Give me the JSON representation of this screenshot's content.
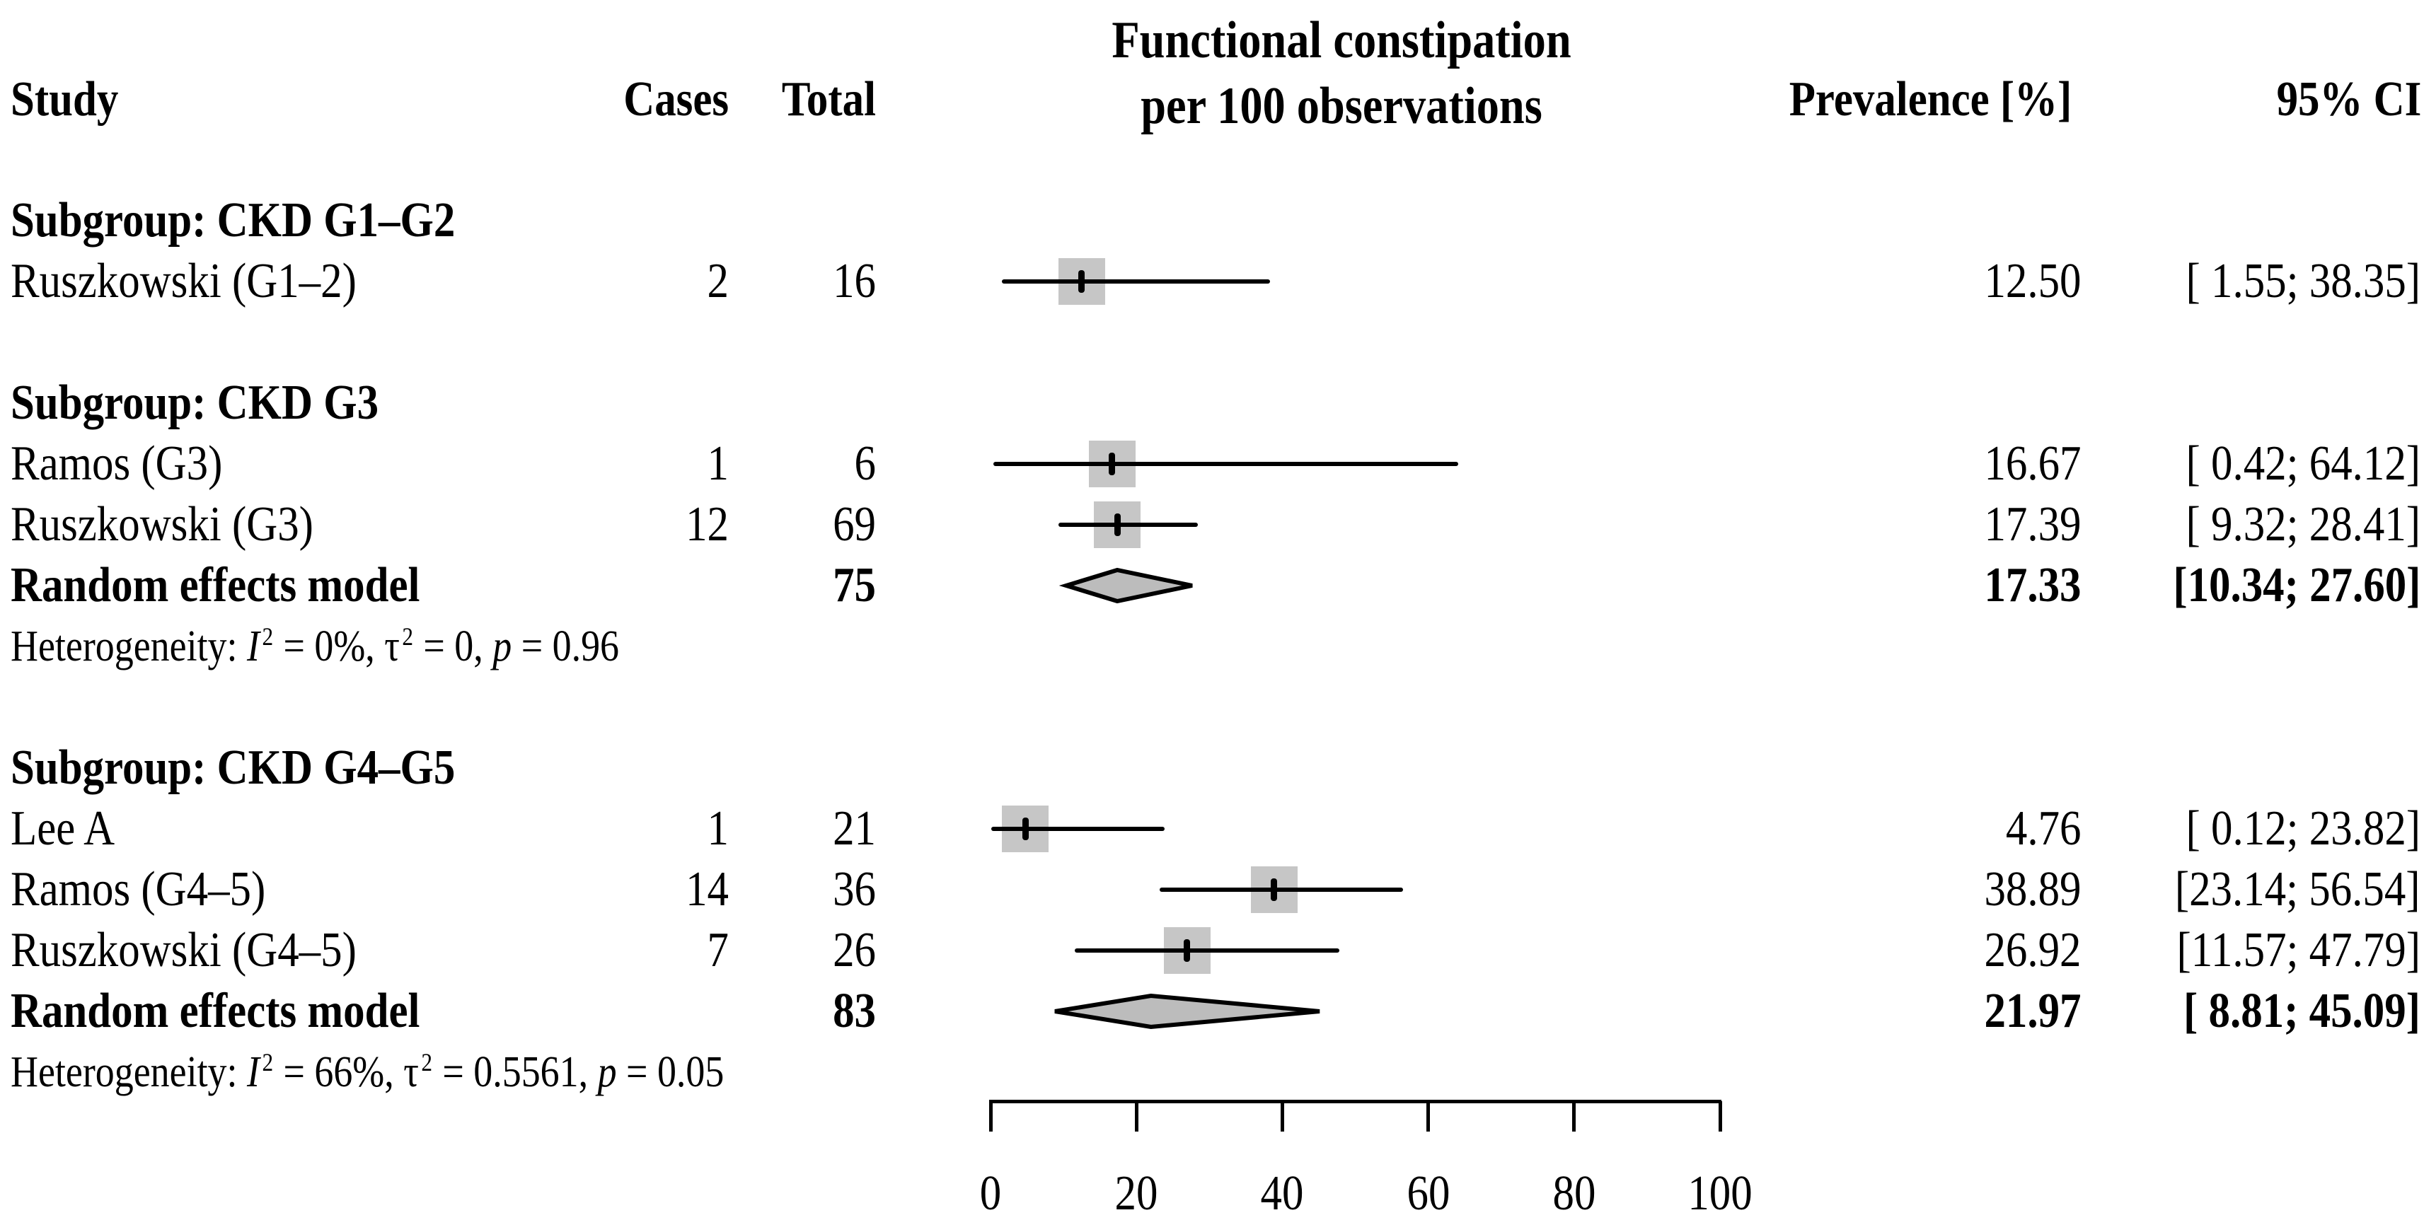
{
  "figure": {
    "background": "#ffffff",
    "text_color": "#000000"
  },
  "header": {
    "study": "Study",
    "cases": "Cases",
    "total": "Total",
    "plot_title_line1": "Functional constipation",
    "plot_title_line2": "per 100 observations",
    "prevalence": "Prevalence [%]",
    "ci": "95% CI"
  },
  "chart_data": {
    "type": "forest",
    "x_axis": {
      "range": [
        0,
        100
      ],
      "ticks": [
        0,
        20,
        40,
        60,
        80,
        100
      ]
    },
    "colors": {
      "square": "#c6c6c6",
      "diamond_fill": "#bcbcbc",
      "line": "#000000"
    },
    "rows": [
      {
        "kind": "subgroup",
        "label": "Subgroup: CKD G1–G2"
      },
      {
        "kind": "study",
        "label": "Ruszkowski (G1–2)",
        "cases": "2",
        "total": "16",
        "prevalence": "12.50",
        "ci": "[ 1.55; 38.35]",
        "est": 12.5,
        "lo": 1.55,
        "hi": 38.35
      },
      {
        "kind": "subgroup",
        "label": "Subgroup: CKD G3"
      },
      {
        "kind": "study",
        "label": "Ramos (G3)",
        "cases": "1",
        "total": "6",
        "prevalence": "16.67",
        "ci": "[ 0.42; 64.12]",
        "est": 16.67,
        "lo": 0.42,
        "hi": 64.12
      },
      {
        "kind": "study",
        "label": "Ruszkowski (G3)",
        "cases": "12",
        "total": "69",
        "prevalence": "17.39",
        "ci": "[ 9.32; 28.41]",
        "est": 17.39,
        "lo": 9.32,
        "hi": 28.41
      },
      {
        "kind": "summary",
        "label": "Random effects model",
        "total": "75",
        "prevalence": "17.33",
        "ci": "[10.34; 27.60]",
        "est": 17.33,
        "lo": 10.34,
        "hi": 27.6
      },
      {
        "kind": "heterogeneity",
        "segments": [
          {
            "t": "Heterogeneity: "
          },
          {
            "t": "I",
            "s": "it"
          },
          {
            "t": "2",
            "s": "sup"
          },
          {
            "t": " = 0%, "
          },
          {
            "t": "τ"
          },
          {
            "t": "2",
            "s": "sup"
          },
          {
            "t": " = 0, "
          },
          {
            "t": "p",
            "s": "it"
          },
          {
            "t": " = 0.96"
          }
        ]
      },
      {
        "kind": "subgroup",
        "label": "Subgroup: CKD G4–G5"
      },
      {
        "kind": "study",
        "label": "Lee A",
        "cases": "1",
        "total": "21",
        "prevalence": "4.76",
        "ci": "[ 0.12; 23.82]",
        "est": 4.76,
        "lo": 0.12,
        "hi": 23.82
      },
      {
        "kind": "study",
        "label": "Ramos (G4–5)",
        "cases": "14",
        "total": "36",
        "prevalence": "38.89",
        "ci": "[23.14; 56.54]",
        "est": 38.89,
        "lo": 23.14,
        "hi": 56.54
      },
      {
        "kind": "study",
        "label": "Ruszkowski (G4–5)",
        "cases": "7",
        "total": "26",
        "prevalence": "26.92",
        "ci": "[11.57; 47.79]",
        "est": 26.92,
        "lo": 11.57,
        "hi": 47.79
      },
      {
        "kind": "summary",
        "label": "Random effects model",
        "total": "83",
        "prevalence": "21.97",
        "ci": "[ 8.81; 45.09]",
        "est": 21.97,
        "lo": 8.81,
        "hi": 45.09
      },
      {
        "kind": "heterogeneity",
        "segments": [
          {
            "t": "Heterogeneity: "
          },
          {
            "t": "I",
            "s": "it"
          },
          {
            "t": "2",
            "s": "sup"
          },
          {
            "t": " = 66%, "
          },
          {
            "t": "τ"
          },
          {
            "t": "2",
            "s": "sup"
          },
          {
            "t": " = 0.5561, "
          },
          {
            "t": "p",
            "s": "it"
          },
          {
            "t": " = 0.05"
          }
        ]
      }
    ]
  }
}
